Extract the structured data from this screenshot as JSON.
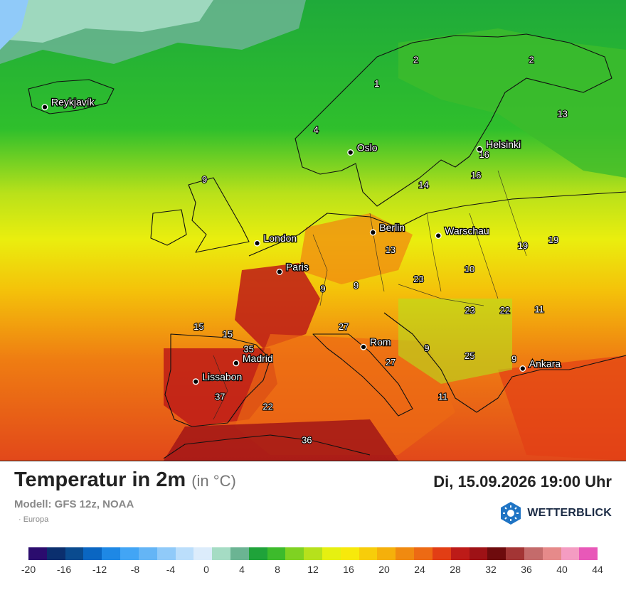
{
  "map": {
    "cities": [
      {
        "name": "Reykjavík",
        "lon": -21.9,
        "lat": 64.1
      },
      {
        "name": "Oslo",
        "lon": 10.75,
        "lat": 59.9
      },
      {
        "name": "Helsinki",
        "lon": 24.9,
        "lat": 60.2
      },
      {
        "name": "London",
        "lon": -0.1,
        "lat": 51.5
      },
      {
        "name": "Berlin",
        "lon": 13.4,
        "lat": 52.5
      },
      {
        "name": "Warschau",
        "lon": 21.0,
        "lat": 52.2
      },
      {
        "name": "Paris",
        "lon": 2.35,
        "lat": 48.85
      },
      {
        "name": "Madrid",
        "lon": -3.7,
        "lat": 40.4
      },
      {
        "name": "Rom",
        "lon": 12.5,
        "lat": 41.9
      },
      {
        "name": "Lissabon",
        "lon": -9.1,
        "lat": 38.7
      },
      {
        "name": "Ankara",
        "lon": 32.9,
        "lat": 39.9
      }
    ],
    "temp_labels": [
      {
        "value": "2",
        "lon": 17.5,
        "lat": 68.2
      },
      {
        "value": "2",
        "lon": 29.5,
        "lat": 68.2
      },
      {
        "value": "1",
        "lon": 13.5,
        "lat": 66.0
      },
      {
        "value": "4",
        "lon": 7.0,
        "lat": 61.7
      },
      {
        "value": "13",
        "lon": 33.5,
        "lat": 63.2
      },
      {
        "value": "16",
        "lon": 25.5,
        "lat": 59.4
      },
      {
        "value": "16",
        "lon": 24.8,
        "lat": 57.5
      },
      {
        "value": "14",
        "lon": 19.0,
        "lat": 56.6
      },
      {
        "value": "9",
        "lon": -5.6,
        "lat": 57.1
      },
      {
        "value": "13",
        "lon": 15.5,
        "lat": 50.6
      },
      {
        "value": "19",
        "lon": 31.0,
        "lat": 51.0
      },
      {
        "value": "19",
        "lon": 34.5,
        "lat": 51.5
      },
      {
        "value": "10",
        "lon": 25.0,
        "lat": 48.8
      },
      {
        "value": "23",
        "lon": 19.0,
        "lat": 47.9
      },
      {
        "value": "9",
        "lon": 7.5,
        "lat": 47.0
      },
      {
        "value": "9",
        "lon": 11.5,
        "lat": 47.3
      },
      {
        "value": "23",
        "lon": 25.5,
        "lat": 45.0
      },
      {
        "value": "22",
        "lon": 29.8,
        "lat": 45.0
      },
      {
        "value": "11",
        "lon": 34.0,
        "lat": 45.1
      },
      {
        "value": "15",
        "lon": -8.0,
        "lat": 43.5
      },
      {
        "value": "15",
        "lon": -4.5,
        "lat": 42.8
      },
      {
        "value": "35",
        "lon": -2.0,
        "lat": 41.4
      },
      {
        "value": "27",
        "lon": 10.0,
        "lat": 43.5
      },
      {
        "value": "27",
        "lon": 16.0,
        "lat": 40.2
      },
      {
        "value": "9",
        "lon": 20.5,
        "lat": 41.5
      },
      {
        "value": "25",
        "lon": 26.0,
        "lat": 40.8
      },
      {
        "value": "9",
        "lon": 31.7,
        "lat": 40.5
      },
      {
        "value": "11",
        "lon": 23.0,
        "lat": 37.0
      },
      {
        "value": "37",
        "lon": -6.2,
        "lat": 37.0
      },
      {
        "value": "22",
        "lon": 0.0,
        "lat": 36.1
      },
      {
        "value": "36",
        "lon": 5.0,
        "lat": 33.0
      }
    ]
  },
  "footer": {
    "title": "Temperatur in 2m",
    "unit": "(in °C)",
    "model": "Modell: GFS 12z, NOAA",
    "region": "· Europa",
    "datetime": "Di, 15.09.2026 19:00 Uhr",
    "brand": "WETTERBLICK"
  },
  "legend": {
    "colors": [
      "#2b0c6e",
      "#0b2f6e",
      "#0a4b8f",
      "#0a66c2",
      "#1e88e5",
      "#42a5f5",
      "#64b5f6",
      "#90caf9",
      "#bbdefb",
      "#dcecfb",
      "#a5dcc4",
      "#6bb493",
      "#1fa33a",
      "#3dbb2c",
      "#7fd222",
      "#b6e11c",
      "#e6f011",
      "#f7e90b",
      "#f7cd0a",
      "#f5b00b",
      "#f08a10",
      "#ed6a14",
      "#e23e15",
      "#bd1b18",
      "#9e1216",
      "#6e0b0d",
      "#a33535",
      "#c46b6b",
      "#e68a8a",
      "#f49cc2",
      "#e858b8"
    ],
    "labels": [
      "-20",
      "-16",
      "-12",
      "-8",
      "-4",
      "0",
      "4",
      "8",
      "12",
      "16",
      "20",
      "24",
      "28",
      "32",
      "36",
      "40",
      "44"
    ]
  }
}
